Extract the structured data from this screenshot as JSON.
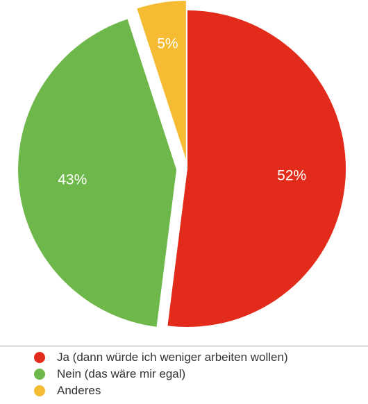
{
  "chart_data": {
    "type": "pie",
    "title": "",
    "slices": [
      {
        "label": "Ja (dann würde ich weniger arbeiten wollen)",
        "value": 52,
        "display": "52%",
        "color": "#e32b1c"
      },
      {
        "label": "Nein (das wäre mir egal)",
        "value": 43,
        "display": "43%",
        "color": "#6eb84b"
      },
      {
        "label": "Anderes",
        "value": 5,
        "display": "5%",
        "color": "#f5bb32"
      }
    ],
    "legend_position": "bottom",
    "exploded": true
  }
}
